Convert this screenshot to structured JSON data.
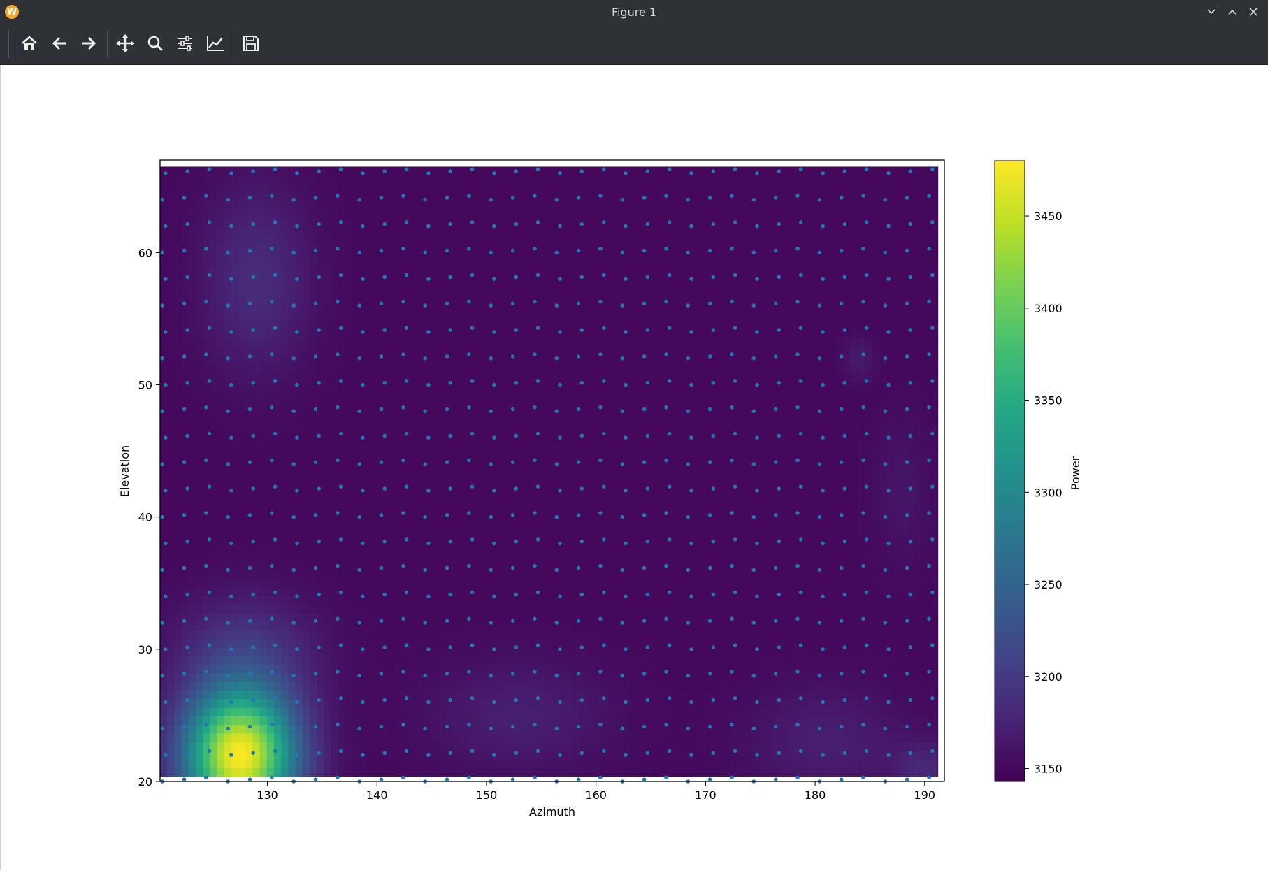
{
  "window": {
    "title": "Figure 1",
    "app_icon_letter": "W"
  },
  "toolbar": {
    "buttons": [
      "home-icon",
      "back-icon",
      "forward-icon",
      "pan-icon",
      "zoom-icon",
      "configure-subplots-icon",
      "edit-axis-icon",
      "save-icon"
    ]
  },
  "colors": {
    "window_chrome": "#2e3136",
    "scatter_points": "#1f77b4",
    "colormap": "viridis"
  },
  "chart_data": {
    "type": "heatmap",
    "title": "",
    "xlabel": "Azimuth",
    "ylabel": "Elevation",
    "colorbar_label": "Power",
    "xlim": [
      120.2,
      191.8
    ],
    "ylim": [
      20,
      67
    ],
    "xticks": [
      130,
      140,
      150,
      160,
      170,
      180,
      190
    ],
    "xtick_labels": [
      "130",
      "140",
      "150",
      "160",
      "170",
      "180",
      "190"
    ],
    "yticks": [
      20,
      30,
      40,
      50,
      60
    ],
    "ytick_labels": [
      "20",
      "30",
      "40",
      "50",
      "60"
    ],
    "colorbar_range": [
      3143,
      3480
    ],
    "colorbar_ticks": [
      3150,
      3200,
      3250,
      3300,
      3350,
      3400,
      3450
    ],
    "colorbar_tick_labels": [
      "3150",
      "3200",
      "3250",
      "3300",
      "3350",
      "3400",
      "3450"
    ],
    "base_power": 3150,
    "heat_region": {
      "azimuth": [
        120.2,
        191.2
      ],
      "elevation": [
        20.4,
        66.5
      ]
    },
    "peaks": [
      {
        "azimuth": 127.5,
        "elevation": 22,
        "power": 3480,
        "spread_az": 3.5,
        "spread_el": 3.5
      },
      {
        "azimuth": 129,
        "elevation": 58,
        "power": 3185,
        "spread_az": 3.5,
        "spread_el": 5
      },
      {
        "azimuth": 128,
        "elevation": 30,
        "power": 3190,
        "spread_az": 4.5,
        "spread_el": 3
      },
      {
        "azimuth": 153,
        "elevation": 25,
        "power": 3172,
        "spread_az": 6,
        "spread_el": 3
      },
      {
        "azimuth": 181,
        "elevation": 23,
        "power": 3172,
        "spread_az": 5,
        "spread_el": 3
      },
      {
        "azimuth": 190,
        "elevation": 21,
        "power": 3178,
        "spread_az": 2,
        "spread_el": 1.5
      },
      {
        "azimuth": 184,
        "elevation": 52,
        "power": 3168,
        "spread_az": 1,
        "spread_el": 1.2
      },
      {
        "azimuth": 188,
        "elevation": 42,
        "power": 3162,
        "spread_az": 2,
        "spread_el": 4
      }
    ],
    "scatter": {
      "azimuth_start": 120.4,
      "azimuth_step": 2.0,
      "azimuth_count": 36,
      "elevation_start": 20,
      "elevation_step": 2.0,
      "elevation_count": 24,
      "marker": "dot"
    }
  }
}
